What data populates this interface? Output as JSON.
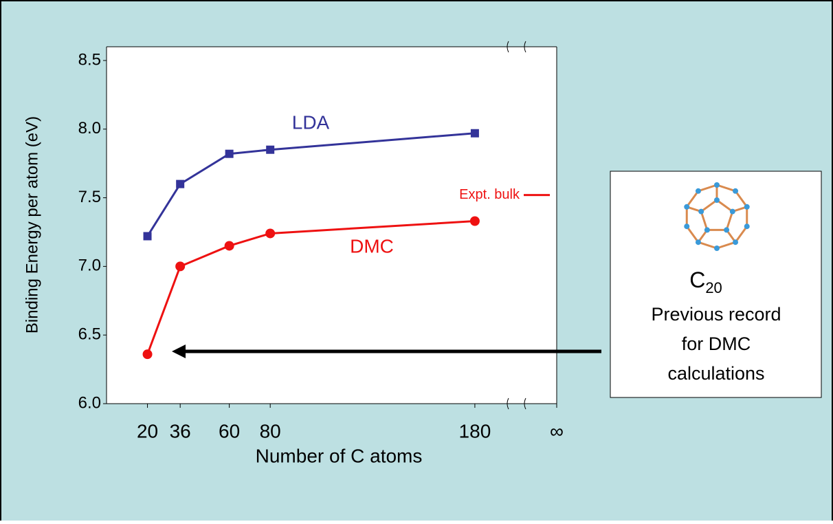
{
  "chart_data": {
    "type": "line",
    "x_label": "Number of C atoms",
    "y_label": "Binding Energy per atom (eV)",
    "xlim": [
      0,
      220
    ],
    "ylim": [
      6.0,
      8.6
    ],
    "xticks": [
      20,
      36,
      60,
      80,
      180,
      {
        "value": 220,
        "label": "∞"
      }
    ],
    "yticks": [
      {
        "value": 6,
        "label": "6.0"
      },
      6.5,
      {
        "value": 7,
        "label": "7.0"
      },
      7.5,
      {
        "value": 8,
        "label": "8.0"
      },
      8.5
    ],
    "x": [
      20,
      36,
      60,
      80,
      180
    ],
    "series": [
      {
        "name": "LDA",
        "color": "#333399",
        "marker": "square",
        "values": [
          7.22,
          7.6,
          7.82,
          7.85,
          7.97
        ]
      },
      {
        "name": "DMC",
        "color": "#ee1111",
        "marker": "circle",
        "values": [
          6.36,
          7.0,
          7.15,
          7.24,
          7.33
        ]
      }
    ],
    "expt_bulk": {
      "label": "Expt. bulk",
      "value": 7.52,
      "color": "#ee1111"
    },
    "callout": {
      "formula": "C",
      "subscript": "20",
      "lines": [
        "Previous record",
        "for DMC",
        "calculations"
      ]
    }
  }
}
